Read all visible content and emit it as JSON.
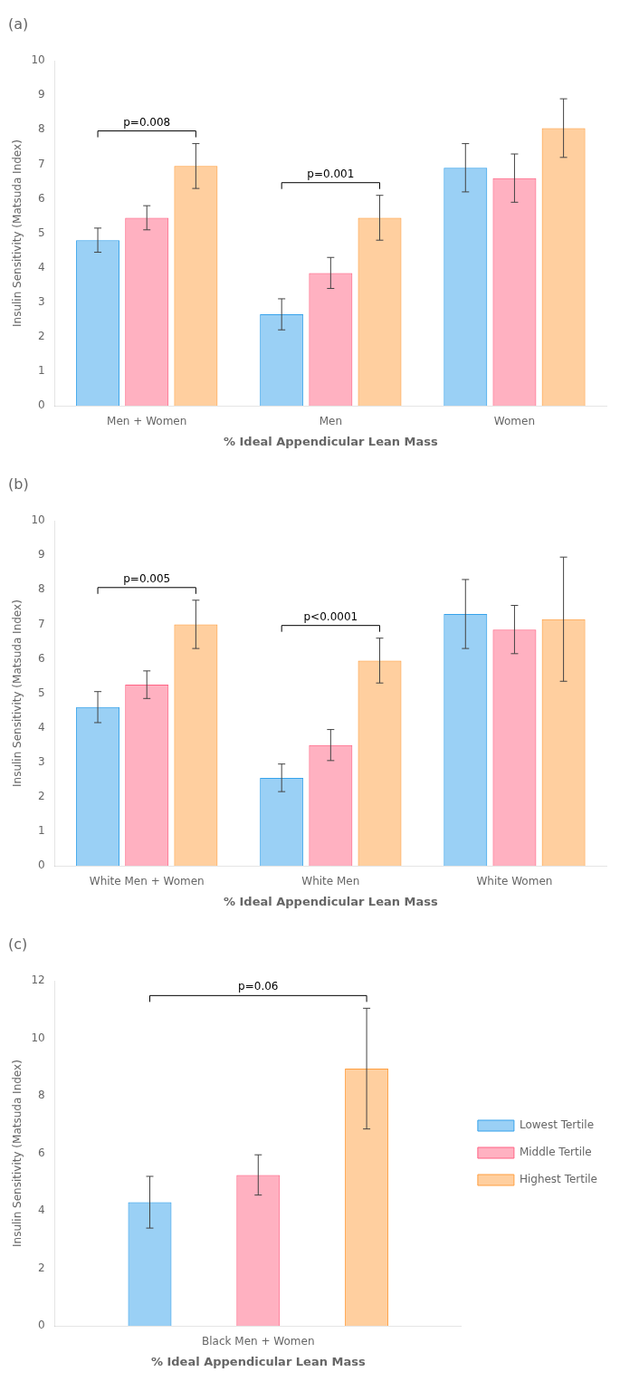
{
  "chart_data": [
    {
      "type": "bar",
      "title": "(a)",
      "xlabel": "% Ideal Appendicular Lean Mass",
      "ylabel": "Insulin Sensitivity (Matsuda Index)",
      "categories": [
        "Men + Women",
        "Men",
        "Women"
      ],
      "series": [
        {
          "name": "Lowest Tertile",
          "values": [
            4.8,
            2.65,
            6.9
          ],
          "errors": [
            0.35,
            0.45,
            0.7
          ]
        },
        {
          "name": "Middle Tertile",
          "values": [
            5.45,
            3.85,
            6.6
          ],
          "errors": [
            0.35,
            0.45,
            0.7
          ]
        },
        {
          "name": "Highest Tertile",
          "values": [
            6.95,
            5.45,
            8.05
          ],
          "errors": [
            0.65,
            0.65,
            0.85
          ]
        }
      ],
      "annotations": [
        {
          "text": "p=0.008",
          "category": "Men + Women"
        },
        {
          "text": "p=0.001",
          "category": "Men"
        }
      ],
      "ylim": [
        0,
        10
      ],
      "yticks": [
        0,
        1,
        2,
        3,
        4,
        5,
        6,
        7,
        8,
        9,
        10
      ],
      "grid": false
    },
    {
      "type": "bar",
      "title": "(b)",
      "xlabel": "% Ideal Appendicular Lean Mass",
      "ylabel": "Insulin Sensitivity (Matsuda Index)",
      "categories": [
        "White Men + Women",
        "White Men",
        "White Women"
      ],
      "series": [
        {
          "name": "Lowest Tertile",
          "values": [
            4.6,
            2.55,
            7.3
          ],
          "errors": [
            0.45,
            0.4,
            1.0
          ]
        },
        {
          "name": "Middle Tertile",
          "values": [
            5.25,
            3.5,
            6.85
          ],
          "errors": [
            0.4,
            0.45,
            0.7
          ]
        },
        {
          "name": "Highest Tertile",
          "values": [
            7.0,
            5.95,
            7.15
          ],
          "errors": [
            0.7,
            0.65,
            1.8
          ]
        }
      ],
      "annotations": [
        {
          "text": "p=0.005",
          "category": "White Men + Women"
        },
        {
          "text": "p<0.0001",
          "category": "White Men"
        }
      ],
      "ylim": [
        0,
        10
      ],
      "yticks": [
        0,
        1,
        2,
        3,
        4,
        5,
        6,
        7,
        8,
        9,
        10
      ],
      "grid": false
    },
    {
      "type": "bar",
      "title": "(c)",
      "xlabel": "% Ideal Appendicular Lean Mass",
      "ylabel": "Insulin Sensitivity (Matsuda Index)",
      "categories": [
        "Black Men + Women"
      ],
      "series": [
        {
          "name": "Lowest Tertile",
          "values": [
            4.3
          ],
          "errors": [
            0.9
          ]
        },
        {
          "name": "Middle Tertile",
          "values": [
            5.25
          ],
          "errors": [
            0.7
          ]
        },
        {
          "name": "Highest Tertile",
          "values": [
            8.95
          ],
          "errors": [
            2.1
          ]
        }
      ],
      "annotations": [
        {
          "text": "p=0.06",
          "category": "Black Men + Women"
        }
      ],
      "ylim": [
        0,
        12
      ],
      "yticks": [
        0,
        2,
        4,
        6,
        8,
        10,
        12
      ],
      "grid": false,
      "legend": "right"
    }
  ]
}
